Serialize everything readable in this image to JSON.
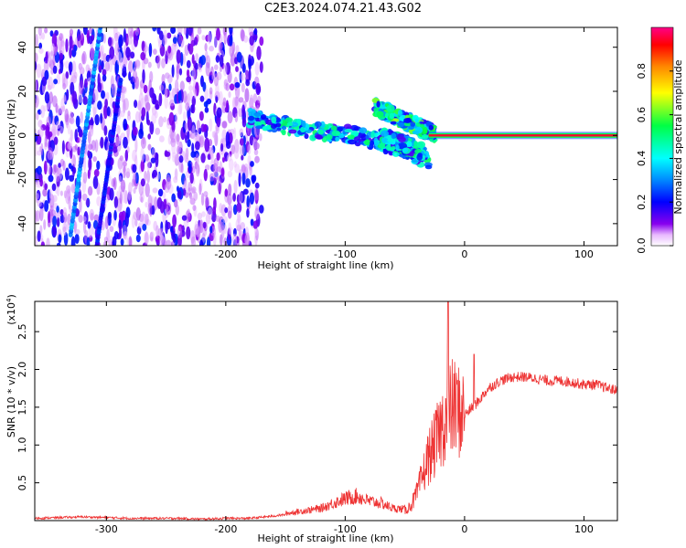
{
  "figure_title": "C2E3.2024.074.21.43.G02",
  "colors": {
    "snr_line": "#ee3333",
    "axis": "#000000",
    "background": "#ffffff"
  },
  "chart_data": [
    {
      "type": "heatmap",
      "title": "",
      "xlabel": "Height of straight line (km)",
      "ylabel": "Frequency (Hz)",
      "xlim": [
        -360,
        128
      ],
      "ylim": [
        -50,
        49
      ],
      "xticks": [
        -300,
        -200,
        -100,
        0,
        100
      ],
      "yticks": [
        -40,
        -20,
        0,
        20,
        40
      ],
      "colorbar": {
        "label": "Normalized spectral amplitude",
        "range": [
          0,
          1
        ],
        "ticks": [
          "0.0",
          "0.2",
          "0.4",
          "0.6",
          "0.8"
        ],
        "colormap": "rainbow"
      },
      "features": [
        {
          "name": "noise",
          "x_range": [
            -360,
            -170
          ],
          "freq_range": [
            -50,
            49
          ],
          "amplitude": 0.15
        },
        {
          "name": "streak",
          "x_from": -330,
          "freq_from": -45,
          "x_to": -305,
          "freq_to": 49,
          "amplitude": 0.3
        },
        {
          "name": "streak",
          "x_from": -308,
          "freq_from": -50,
          "x_to": -288,
          "freq_to": 25,
          "amplitude": 0.2
        },
        {
          "name": "band",
          "x": [
            -180,
            -130,
            -90,
            -50,
            -30
          ],
          "freq": [
            8,
            2,
            0,
            -6,
            -12
          ],
          "amplitude": 0.45
        },
        {
          "name": "band",
          "x": [
            -75,
            -55,
            -35,
            -25
          ],
          "freq": [
            13,
            8,
            3,
            1
          ],
          "amplitude": 0.55
        },
        {
          "name": "band",
          "x": [
            -70,
            -50,
            -35
          ],
          "freq": [
            -1,
            -4,
            -8
          ],
          "amplitude": 0.45
        },
        {
          "name": "carrier",
          "x_range": [
            -30,
            128
          ],
          "freq": 0,
          "amplitude": 0.95
        }
      ]
    },
    {
      "type": "line",
      "title": "",
      "xlabel": "Height of straight line (km)",
      "ylabel": "SNR (10 * v/v)",
      "y_multiplier": "(x10",
      "y_multiplier_exp": "4",
      "y_multiplier_close": ")",
      "xlim": [
        -360,
        128
      ],
      "ylim": [
        0,
        2.9
      ],
      "xticks": [
        -300,
        -200,
        -100,
        0,
        100
      ],
      "yticks": [
        0.5,
        1.0,
        1.5,
        2.0,
        2.5
      ],
      "series": [
        {
          "x": [
            -360,
            -340,
            -320,
            -300,
            -280,
            -260,
            -240,
            -220,
            -200,
            -180,
            -160,
            -140,
            -120,
            -110,
            -100,
            -90,
            -80,
            -70,
            -60,
            -50,
            -45,
            -40,
            -35,
            -30,
            -25,
            -20,
            -15,
            -10,
            -5,
            0,
            10,
            20,
            30,
            40,
            50,
            60,
            70,
            80,
            90,
            100,
            110,
            120,
            128
          ],
          "y": [
            0.03,
            0.04,
            0.05,
            0.04,
            0.03,
            0.03,
            0.03,
            0.02,
            0.03,
            0.03,
            0.06,
            0.1,
            0.14,
            0.2,
            0.25,
            0.28,
            0.22,
            0.2,
            0.14,
            0.13,
            0.2,
            0.35,
            0.6,
            0.85,
            1.0,
            1.2,
            1.4,
            1.5,
            1.45,
            1.4,
            1.55,
            1.75,
            1.85,
            1.9,
            1.9,
            1.88,
            1.85,
            1.85,
            1.83,
            1.8,
            1.8,
            1.75,
            1.72
          ]
        }
      ]
    }
  ]
}
